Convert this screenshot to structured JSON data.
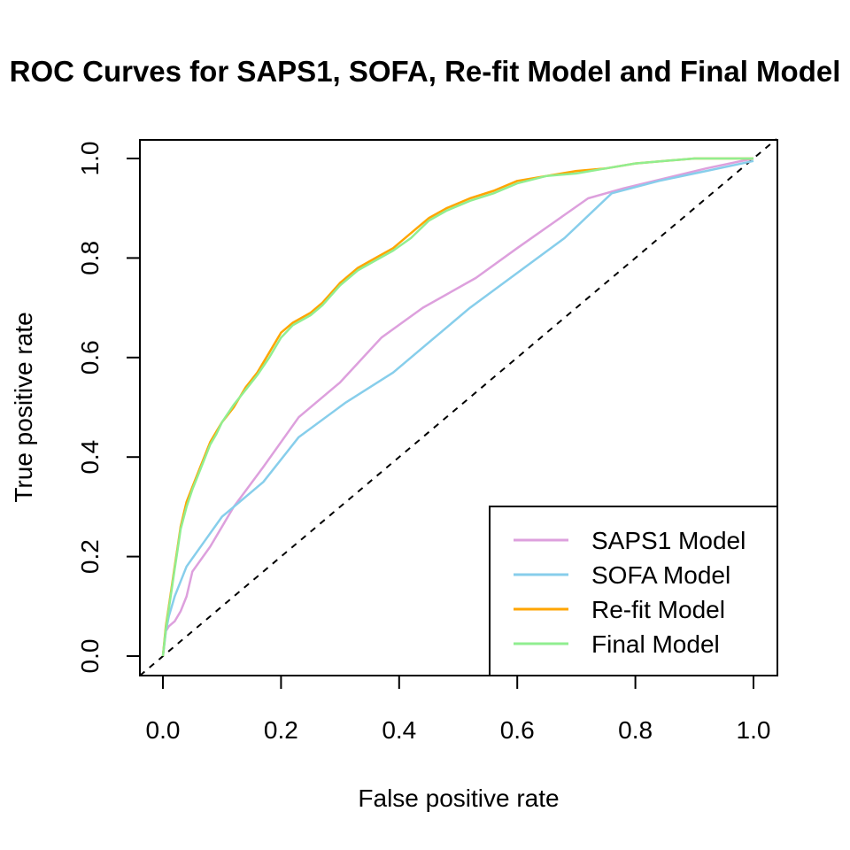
{
  "chart_data": {
    "type": "line",
    "title": "ROC Curves for SAPS1, SOFA, Re-fit Model and Final Model",
    "xlabel": "False positive rate",
    "ylabel": "True positive rate",
    "xlim": [
      0,
      1
    ],
    "ylim": [
      0,
      1
    ],
    "xticks": [
      "0.0",
      "0.2",
      "0.4",
      "0.6",
      "0.8",
      "1.0"
    ],
    "yticks": [
      "0.0",
      "0.2",
      "0.4",
      "0.6",
      "0.8",
      "1.0"
    ],
    "grid": false,
    "legend_position": "bottom-right",
    "diagonal": {
      "x": [
        0,
        1
      ],
      "y": [
        0,
        1
      ],
      "style": "dashed",
      "color": "#000000"
    },
    "series": [
      {
        "name": "SAPS1 Model",
        "color": "#DDA0DD",
        "x": [
          0,
          0.005,
          0.01,
          0.02,
          0.03,
          0.04,
          0.05,
          0.08,
          0.12,
          0.17,
          0.23,
          0.3,
          0.37,
          0.44,
          0.53,
          0.6,
          0.66,
          0.72,
          0.78,
          0.85,
          0.92,
          1.0
        ],
        "y": [
          0,
          0.05,
          0.06,
          0.07,
          0.09,
          0.12,
          0.17,
          0.22,
          0.3,
          0.38,
          0.48,
          0.55,
          0.64,
          0.7,
          0.76,
          0.82,
          0.87,
          0.92,
          0.94,
          0.96,
          0.98,
          1.0
        ]
      },
      {
        "name": "SOFA Model",
        "color": "#87CEEB",
        "x": [
          0,
          0.005,
          0.01,
          0.02,
          0.04,
          0.07,
          0.1,
          0.17,
          0.23,
          0.31,
          0.39,
          0.46,
          0.52,
          0.6,
          0.68,
          0.76,
          0.84,
          0.92,
          1.0
        ],
        "y": [
          0,
          0.05,
          0.08,
          0.12,
          0.18,
          0.23,
          0.28,
          0.35,
          0.44,
          0.51,
          0.57,
          0.64,
          0.7,
          0.77,
          0.84,
          0.93,
          0.955,
          0.975,
          0.995
        ]
      },
      {
        "name": "Re-fit Model",
        "color": "#FFA500",
        "x": [
          0,
          0.005,
          0.01,
          0.015,
          0.02,
          0.025,
          0.03,
          0.04,
          0.05,
          0.06,
          0.07,
          0.08,
          0.09,
          0.1,
          0.12,
          0.14,
          0.16,
          0.18,
          0.2,
          0.22,
          0.25,
          0.27,
          0.3,
          0.33,
          0.36,
          0.39,
          0.42,
          0.45,
          0.48,
          0.52,
          0.56,
          0.6,
          0.65,
          0.7,
          0.75,
          0.8,
          0.85,
          0.9,
          0.95,
          1.0
        ],
        "y": [
          0,
          0.06,
          0.1,
          0.14,
          0.18,
          0.22,
          0.26,
          0.31,
          0.34,
          0.37,
          0.4,
          0.43,
          0.45,
          0.47,
          0.5,
          0.54,
          0.57,
          0.61,
          0.65,
          0.67,
          0.69,
          0.71,
          0.75,
          0.78,
          0.8,
          0.82,
          0.85,
          0.88,
          0.9,
          0.92,
          0.935,
          0.955,
          0.965,
          0.975,
          0.98,
          0.99,
          0.995,
          1.0,
          1.0,
          1.0
        ]
      },
      {
        "name": "Final Model",
        "color": "#90EE90",
        "x": [
          0,
          0.005,
          0.01,
          0.015,
          0.02,
          0.025,
          0.03,
          0.04,
          0.05,
          0.06,
          0.07,
          0.08,
          0.09,
          0.1,
          0.12,
          0.14,
          0.16,
          0.18,
          0.2,
          0.22,
          0.25,
          0.27,
          0.3,
          0.33,
          0.36,
          0.39,
          0.42,
          0.45,
          0.48,
          0.52,
          0.56,
          0.6,
          0.65,
          0.7,
          0.75,
          0.8,
          0.85,
          0.9,
          0.95,
          1.0
        ],
        "y": [
          0,
          0.055,
          0.095,
          0.135,
          0.175,
          0.215,
          0.255,
          0.3,
          0.335,
          0.365,
          0.395,
          0.425,
          0.445,
          0.47,
          0.505,
          0.535,
          0.565,
          0.6,
          0.64,
          0.665,
          0.685,
          0.705,
          0.745,
          0.775,
          0.795,
          0.815,
          0.84,
          0.875,
          0.895,
          0.915,
          0.93,
          0.95,
          0.965,
          0.97,
          0.98,
          0.99,
          0.995,
          1.0,
          1.0,
          1.0
        ]
      }
    ]
  }
}
